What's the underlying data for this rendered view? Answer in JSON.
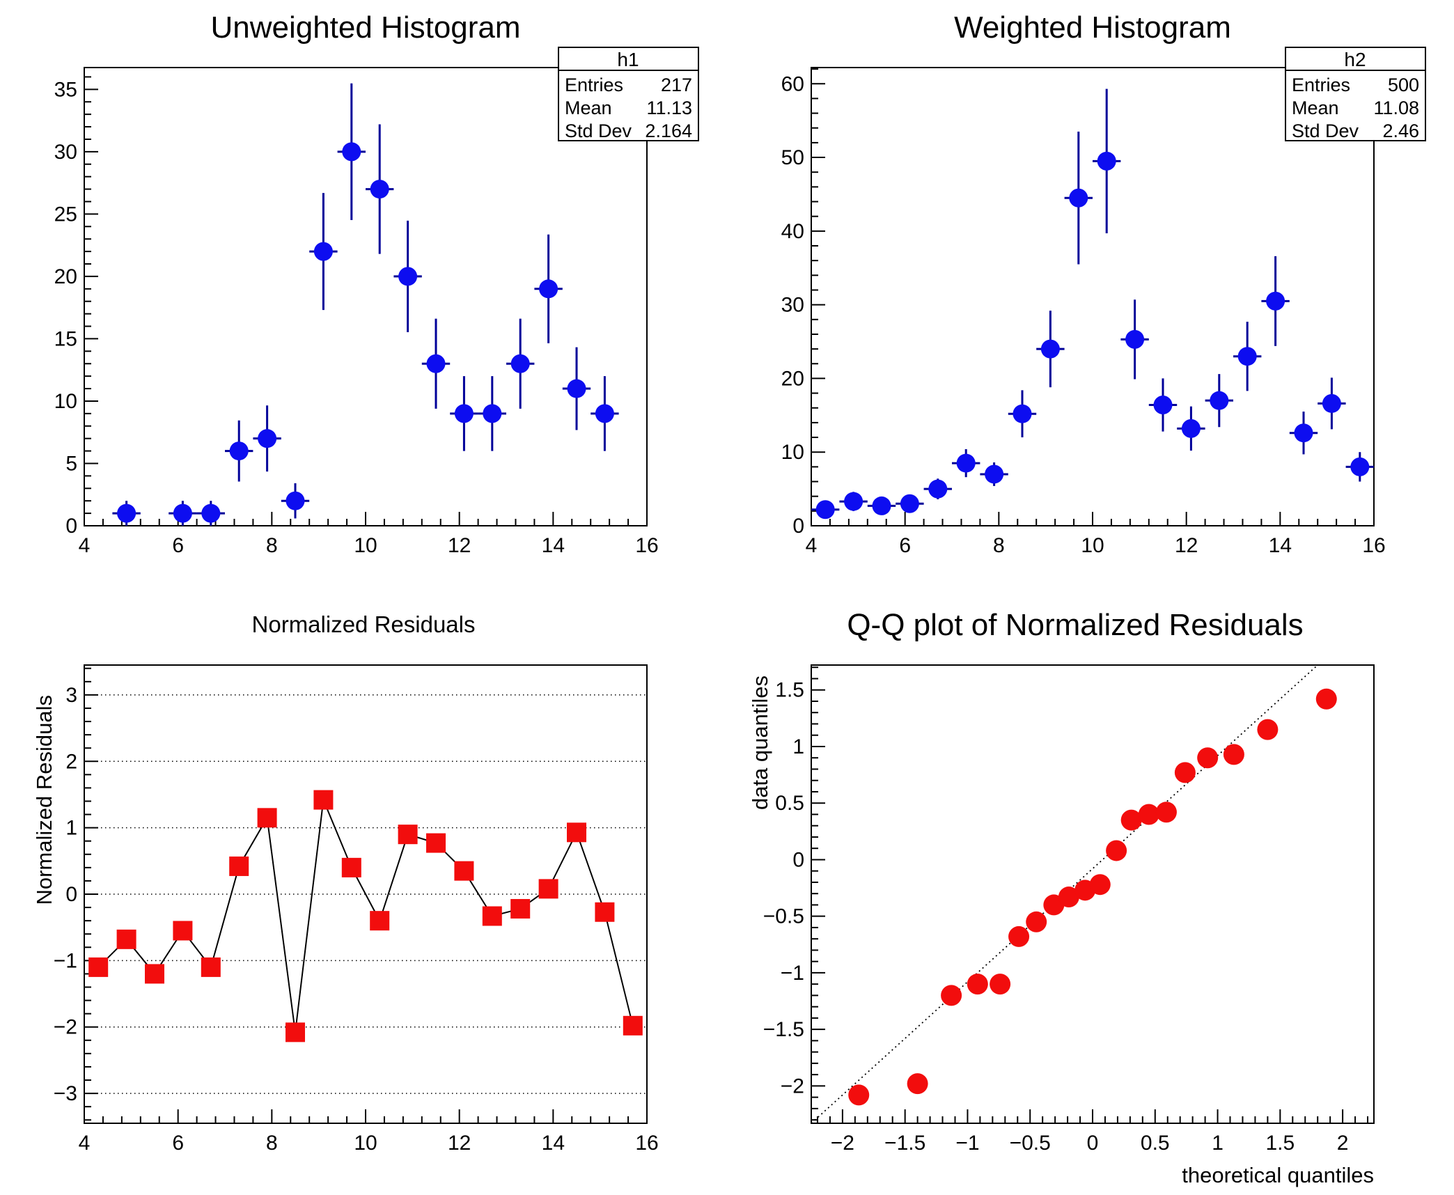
{
  "canvas": {
    "background": "#ffffff"
  },
  "colors": {
    "blue_marker": "#0d0df0",
    "blue_errbar": "#000099",
    "red_marker": "#f20d0d",
    "line_black": "#000000",
    "frame": "#000000"
  },
  "chart_data": [
    {
      "type": "scatter",
      "title": "Unweighted Histogram",
      "marker": "circle",
      "marker_color": "#0d0df0",
      "err_color": "#000099",
      "xlim": [
        4,
        16
      ],
      "ylim": [
        0,
        36.75
      ],
      "xticks": [
        4,
        6,
        8,
        10,
        12,
        14,
        16
      ],
      "xtick_labels": [
        "4",
        "6",
        "8",
        "10",
        "12",
        "14",
        "16"
      ],
      "x_minor_step": 0.4,
      "yticks": [
        0,
        5,
        10,
        15,
        20,
        25,
        30,
        35
      ],
      "ytick_labels": [
        "0",
        "5",
        "10",
        "15",
        "20",
        "25",
        "30",
        "35"
      ],
      "y_minor_step": 1,
      "xerr": 0.3,
      "x": [
        4.9,
        6.1,
        6.7,
        7.3,
        7.9,
        8.5,
        9.1,
        9.7,
        10.3,
        10.9,
        11.5,
        12.1,
        12.7,
        13.3,
        13.9,
        14.5,
        15.1
      ],
      "y": [
        1,
        1,
        1,
        6,
        7,
        2,
        22,
        30,
        27,
        20,
        13,
        9,
        9,
        13,
        19,
        11,
        9
      ],
      "ey": [
        1,
        1,
        1,
        2.45,
        2.65,
        1.41,
        4.69,
        5.48,
        5.2,
        4.47,
        3.61,
        3,
        3,
        3.61,
        4.36,
        3.32,
        3
      ],
      "stats": {
        "name": "h1",
        "entries_label": "Entries",
        "entries": "217",
        "mean_label": "Mean",
        "mean": "11.13",
        "stddev_label": "Std Dev",
        "stddev": "2.164"
      }
    },
    {
      "type": "scatter",
      "title": "Weighted Histogram",
      "marker": "circle",
      "marker_color": "#0d0df0",
      "err_color": "#000099",
      "xlim": [
        4,
        16
      ],
      "ylim": [
        0,
        62.2
      ],
      "xticks": [
        4,
        6,
        8,
        10,
        12,
        14,
        16
      ],
      "xtick_labels": [
        "4",
        "6",
        "8",
        "10",
        "12",
        "14",
        "16"
      ],
      "x_minor_step": 0.4,
      "yticks": [
        0,
        10,
        20,
        30,
        40,
        50,
        60
      ],
      "ytick_labels": [
        "0",
        "10",
        "20",
        "30",
        "40",
        "50",
        "60"
      ],
      "y_minor_step": 2,
      "xerr": 0.3,
      "x": [
        4.3,
        4.9,
        5.5,
        6.1,
        6.7,
        7.3,
        7.9,
        8.5,
        9.1,
        9.7,
        10.3,
        10.9,
        11.5,
        12.1,
        12.7,
        13.3,
        13.9,
        14.5,
        15.1,
        15.7
      ],
      "y": [
        2.2,
        3.3,
        2.7,
        3.0,
        5.0,
        8.5,
        7.0,
        15.2,
        24.0,
        44.5,
        49.5,
        25.3,
        16.4,
        13.2,
        17.0,
        23.0,
        30.5,
        12.6,
        16.6,
        8.0
      ],
      "ey": [
        0.9,
        1.3,
        1.1,
        1.1,
        1.4,
        1.9,
        1.6,
        3.2,
        5.2,
        9.0,
        9.8,
        5.4,
        3.6,
        3.0,
        3.6,
        4.7,
        6.1,
        2.9,
        3.5,
        2.0
      ],
      "stats": {
        "name": "h2",
        "entries_label": "Entries",
        "entries": "500",
        "mean_label": "Mean",
        "mean": "11.08",
        "stddev_label": "Std Dev",
        "stddev": "2.46"
      }
    },
    {
      "type": "line",
      "title": "Normalized Residuals",
      "ytitle": "Normalized Residuals",
      "marker": "square",
      "marker_color": "#f20d0d",
      "line_color": "#000000",
      "grid": true,
      "xlim": [
        4,
        16
      ],
      "ylim": [
        -3.45,
        3.45
      ],
      "xticks": [
        4,
        6,
        8,
        10,
        12,
        14,
        16
      ],
      "xtick_labels": [
        "4",
        "6",
        "8",
        "10",
        "12",
        "14",
        "16"
      ],
      "x_minor_step": 0.4,
      "yticks": [
        -3,
        -2,
        -1,
        0,
        1,
        2,
        3
      ],
      "ytick_labels": [
        "−3",
        "−2",
        "−1",
        "0",
        "1",
        "2",
        "3"
      ],
      "y_minor_step": 0.2,
      "x": [
        4.3,
        4.9,
        5.5,
        6.1,
        6.7,
        7.3,
        7.9,
        8.5,
        9.1,
        9.7,
        10.3,
        10.9,
        11.5,
        12.1,
        12.7,
        13.3,
        13.9,
        14.5,
        15.1,
        15.7
      ],
      "y": [
        -1.1,
        -0.68,
        -1.2,
        -0.55,
        -1.1,
        0.42,
        1.15,
        -2.08,
        1.42,
        0.4,
        -0.4,
        0.9,
        0.77,
        0.35,
        -0.33,
        -0.22,
        0.08,
        0.93,
        -0.27,
        -1.98
      ]
    },
    {
      "type": "qq",
      "title": "Q-Q plot of Normalized Residuals",
      "xtitle": "theoretical quantiles",
      "ytitle": "data quantiles",
      "marker": "circle",
      "marker_color": "#f20d0d",
      "xlim": [
        -2.25,
        2.25
      ],
      "ylim": [
        -2.33,
        1.72
      ],
      "xticks": [
        -2,
        -1.5,
        -1,
        -0.5,
        0,
        0.5,
        1,
        1.5,
        2
      ],
      "xtick_labels": [
        "−2",
        "−1.5",
        "−1",
        "−0.5",
        "0",
        "0.5",
        "1",
        "1.5",
        "2"
      ],
      "x_minor_step": 0.1,
      "yticks": [
        -2,
        -1.5,
        -1,
        -0.5,
        0,
        0.5,
        1,
        1.5
      ],
      "ytick_labels": [
        "−2",
        "−1.5",
        "−1",
        "−0.5",
        "0",
        "0.5",
        "1",
        "1.5"
      ],
      "y_minor_step": 0.1,
      "refline": {
        "x1": -2.25,
        "y1": -2.33,
        "x2": 1.8,
        "y2": 1.72
      },
      "x": [
        -1.87,
        -1.4,
        -1.13,
        -0.92,
        -0.74,
        -0.59,
        -0.45,
        -0.31,
        -0.19,
        -0.06,
        0.06,
        0.19,
        0.31,
        0.45,
        0.59,
        0.74,
        0.92,
        1.13,
        1.4,
        1.87
      ],
      "y": [
        -2.08,
        -1.98,
        -1.2,
        -1.1,
        -1.1,
        -0.68,
        -0.55,
        -0.4,
        -0.33,
        -0.27,
        -0.22,
        0.08,
        0.35,
        0.4,
        0.42,
        0.77,
        0.9,
        0.93,
        1.15,
        1.42
      ]
    }
  ]
}
